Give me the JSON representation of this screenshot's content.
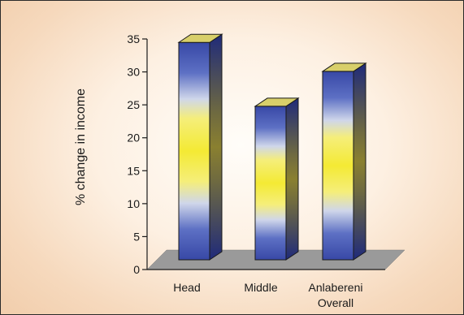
{
  "chart_data": {
    "type": "bar",
    "categories": [
      "Head",
      "Middle",
      "Anlabereni Overall"
    ],
    "category_lines": [
      [
        "Head"
      ],
      [
        "Middle"
      ],
      [
        "Anlabereni",
        "Overall"
      ]
    ],
    "values": [
      33,
      23.3,
      28.6
    ],
    "ylabel": "% change in income",
    "xlabel": "",
    "ylim": [
      0,
      35
    ],
    "yticks": [
      0,
      5,
      10,
      15,
      20,
      25,
      30,
      35
    ],
    "grid": false,
    "legend": "none",
    "style": "3d-column",
    "colors": {
      "bar_edge": "#3a4fa8",
      "bar_mid": "#f3ea3a",
      "bar_top": "#d8cf6a",
      "bar_side": "#27338a",
      "floor": "#9a9a9a",
      "axis": "#1a1a1a"
    }
  }
}
